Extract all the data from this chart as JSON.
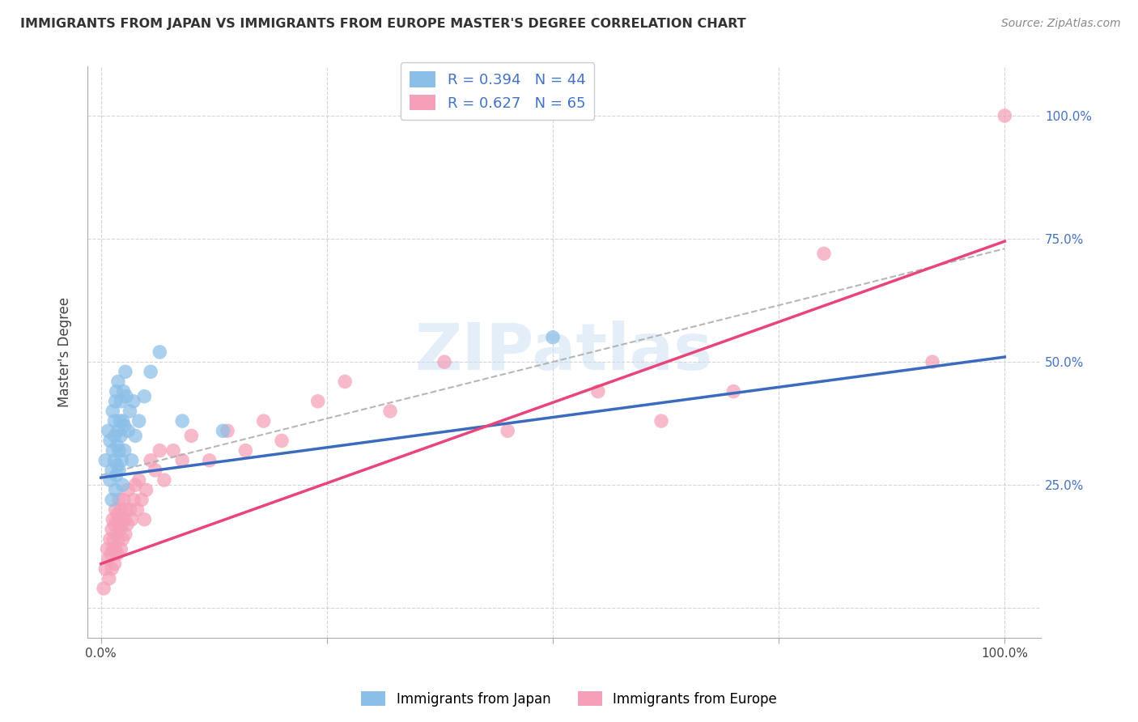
{
  "title": "IMMIGRANTS FROM JAPAN VS IMMIGRANTS FROM EUROPE MASTER'S DEGREE CORRELATION CHART",
  "source": "Source: ZipAtlas.com",
  "ylabel": "Master's Degree",
  "ytick_labels": [
    "",
    "25.0%",
    "50.0%",
    "75.0%",
    "100.0%"
  ],
  "ytick_positions": [
    0.0,
    0.25,
    0.5,
    0.75,
    1.0
  ],
  "xtick_positions": [
    0.0,
    0.25,
    0.5,
    0.75,
    1.0
  ],
  "background_color": "#ffffff",
  "grid_color": "#d0d0d0",
  "japan_color": "#8bbfe8",
  "europe_color": "#f4a0b8",
  "japan_line_color": "#3a6bbf",
  "europe_line_color": "#e8457a",
  "japan_line_x0": 0.0,
  "japan_line_y0": 0.265,
  "japan_line_x1": 1.0,
  "japan_line_y1": 0.51,
  "europe_line_x0": 0.0,
  "europe_line_y0": 0.09,
  "europe_line_x1": 1.0,
  "europe_line_y1": 0.745,
  "dashed_line_x0": 0.0,
  "dashed_line_y0": 0.27,
  "dashed_line_x1": 1.0,
  "dashed_line_y1": 0.73,
  "japan_scatter_x": [
    0.005,
    0.008,
    0.01,
    0.01,
    0.012,
    0.012,
    0.013,
    0.013,
    0.015,
    0.015,
    0.015,
    0.016,
    0.016,
    0.017,
    0.017,
    0.018,
    0.018,
    0.019,
    0.019,
    0.02,
    0.02,
    0.021,
    0.022,
    0.022,
    0.023,
    0.024,
    0.024,
    0.025,
    0.026,
    0.026,
    0.027,
    0.028,
    0.03,
    0.032,
    0.034,
    0.036,
    0.038,
    0.042,
    0.048,
    0.055,
    0.065,
    0.09,
    0.135,
    0.5
  ],
  "japan_scatter_y": [
    0.3,
    0.36,
    0.26,
    0.34,
    0.22,
    0.28,
    0.32,
    0.4,
    0.3,
    0.35,
    0.38,
    0.24,
    0.42,
    0.27,
    0.44,
    0.29,
    0.33,
    0.36,
    0.46,
    0.28,
    0.32,
    0.38,
    0.35,
    0.42,
    0.3,
    0.25,
    0.38,
    0.44,
    0.32,
    0.37,
    0.48,
    0.43,
    0.36,
    0.4,
    0.3,
    0.42,
    0.35,
    0.38,
    0.43,
    0.48,
    0.52,
    0.38,
    0.36,
    0.55
  ],
  "europe_scatter_x": [
    0.003,
    0.005,
    0.007,
    0.008,
    0.009,
    0.01,
    0.011,
    0.012,
    0.012,
    0.013,
    0.013,
    0.014,
    0.015,
    0.015,
    0.016,
    0.016,
    0.017,
    0.018,
    0.018,
    0.019,
    0.02,
    0.02,
    0.021,
    0.022,
    0.022,
    0.023,
    0.024,
    0.025,
    0.026,
    0.027,
    0.028,
    0.029,
    0.03,
    0.032,
    0.034,
    0.036,
    0.038,
    0.04,
    0.042,
    0.045,
    0.048,
    0.05,
    0.055,
    0.06,
    0.065,
    0.07,
    0.08,
    0.09,
    0.1,
    0.12,
    0.14,
    0.16,
    0.18,
    0.2,
    0.24,
    0.27,
    0.32,
    0.38,
    0.45,
    0.55,
    0.62,
    0.7,
    0.8,
    0.92,
    1.0
  ],
  "europe_scatter_y": [
    0.04,
    0.08,
    0.12,
    0.1,
    0.06,
    0.14,
    0.11,
    0.08,
    0.16,
    0.12,
    0.18,
    0.14,
    0.09,
    0.17,
    0.12,
    0.2,
    0.15,
    0.11,
    0.19,
    0.14,
    0.18,
    0.22,
    0.16,
    0.12,
    0.2,
    0.17,
    0.14,
    0.22,
    0.18,
    0.15,
    0.2,
    0.17,
    0.24,
    0.2,
    0.18,
    0.22,
    0.25,
    0.2,
    0.26,
    0.22,
    0.18,
    0.24,
    0.3,
    0.28,
    0.32,
    0.26,
    0.32,
    0.3,
    0.35,
    0.3,
    0.36,
    0.32,
    0.38,
    0.34,
    0.42,
    0.46,
    0.4,
    0.5,
    0.36,
    0.44,
    0.38,
    0.44,
    0.72,
    0.5,
    1.0
  ],
  "legend_japan_label": "R = 0.394   N = 44",
  "legend_europe_label": "R = 0.627   N = 65",
  "bottom_legend_japan": "Immigrants from Japan",
  "bottom_legend_europe": "Immigrants from Europe",
  "watermark": "ZIPatlas"
}
